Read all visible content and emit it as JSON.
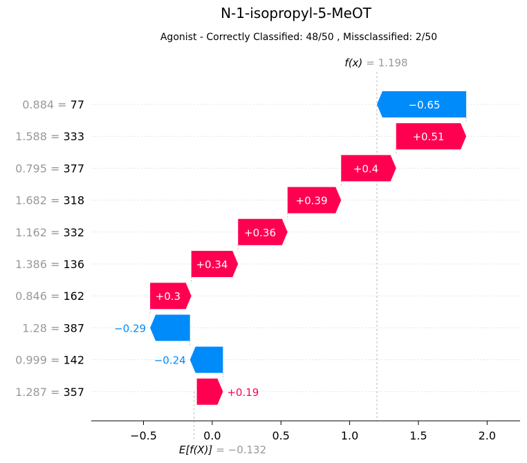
{
  "chart_data": {
    "type": "waterfall",
    "title": "N-1-isopropyl-5-MeOT",
    "subtitle": "Agonist - Correctly Classified: 48/50 , Missclassified: 2/50",
    "fx": {
      "label": "f(x)",
      "value_text": "= 1.198",
      "value": 1.198
    },
    "base": {
      "label": "E[f(X)]",
      "value_text": "= −0.132",
      "value": -0.132
    },
    "xlim": [
      -0.88,
      2.24
    ],
    "xticks": [
      {
        "value": -0.5,
        "label": "−0.5"
      },
      {
        "value": 0.0,
        "label": "0.0"
      },
      {
        "value": 0.5,
        "label": "0.5"
      },
      {
        "value": 1.0,
        "label": "1.0"
      },
      {
        "value": 1.5,
        "label": "1.5"
      },
      {
        "value": 2.0,
        "label": "2.0"
      }
    ],
    "features": [
      {
        "feature_value": "0.884 =",
        "feature_name": "77",
        "contribution": -0.65,
        "label": "−0.65"
      },
      {
        "feature_value": "1.588 =",
        "feature_name": "333",
        "contribution": 0.51,
        "label": "+0.51"
      },
      {
        "feature_value": "0.795 =",
        "feature_name": "377",
        "contribution": 0.4,
        "label": "+0.4"
      },
      {
        "feature_value": "1.682 =",
        "feature_name": "318",
        "contribution": 0.39,
        "label": "+0.39"
      },
      {
        "feature_value": "1.162 =",
        "feature_name": "332",
        "contribution": 0.36,
        "label": "+0.36"
      },
      {
        "feature_value": "1.386 =",
        "feature_name": "136",
        "contribution": 0.34,
        "label": "+0.34"
      },
      {
        "feature_value": "0.846 =",
        "feature_name": "162",
        "contribution": 0.3,
        "label": "+0.3"
      },
      {
        "feature_value": "1.28 =",
        "feature_name": "387",
        "contribution": -0.29,
        "label": "−0.29"
      },
      {
        "feature_value": "0.999 =",
        "feature_name": "142",
        "contribution": -0.24,
        "label": "−0.24"
      },
      {
        "feature_value": "1.287 =",
        "feature_name": "357",
        "contribution": 0.19,
        "label": "+0.19"
      }
    ],
    "colors": {
      "positive": "#ff0051",
      "negative": "#008bfb",
      "muted": "#999999"
    },
    "grid": true
  }
}
